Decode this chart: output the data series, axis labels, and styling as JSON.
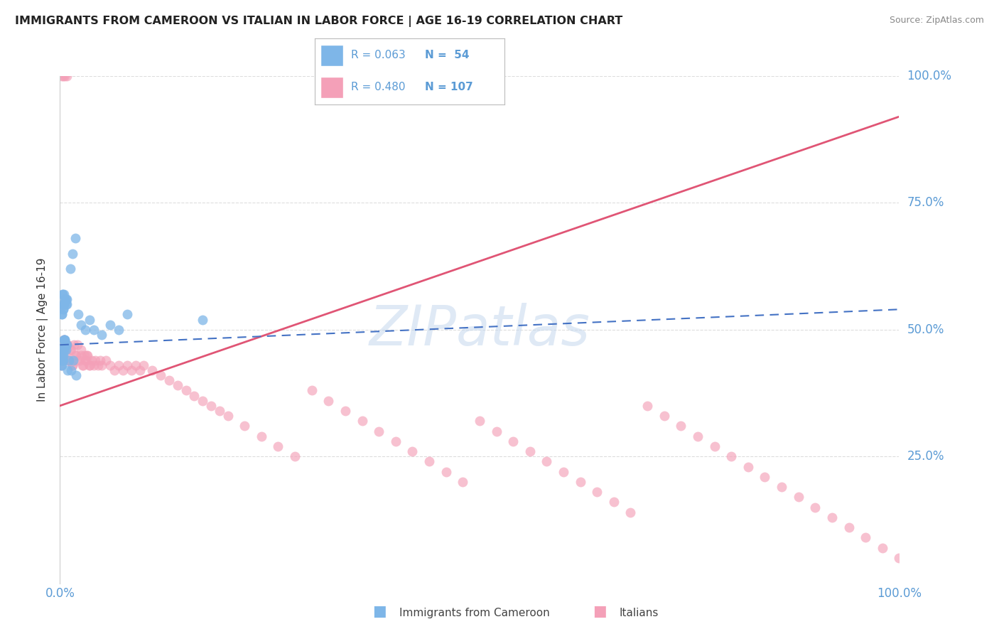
{
  "title": "IMMIGRANTS FROM CAMEROON VS ITALIAN IN LABOR FORCE | AGE 16-19 CORRELATION CHART",
  "source": "Source: ZipAtlas.com",
  "ylabel": "In Labor Force | Age 16-19",
  "xlim": [
    0.0,
    1.0
  ],
  "ylim": [
    0.0,
    1.0
  ],
  "xticklabels": [
    "0.0%",
    "100.0%"
  ],
  "yticklabels": [
    "25.0%",
    "50.0%",
    "75.0%",
    "100.0%"
  ],
  "ytick_positions": [
    0.25,
    0.5,
    0.75,
    1.0
  ],
  "watermark": "ZIPatlas",
  "legend_r_cam": "0.063",
  "legend_n_cam": "54",
  "legend_r_ital": "0.480",
  "legend_n_ital": "107",
  "color_cameroon": "#7EB6E8",
  "color_italian": "#F4A0B8",
  "color_trend_cameroon": "#4472C4",
  "color_trend_italian": "#E05575",
  "color_tick_labels": "#5B9BD5",
  "color_title": "#222222",
  "background_color": "#FFFFFF",
  "grid_color": "#DDDDDD",
  "watermark_color": "#C5D8EE",
  "cam_x": [
    0.005,
    0.003,
    0.002,
    0.007,
    0.004,
    0.006,
    0.001,
    0.008,
    0.003,
    0.005,
    0.002,
    0.004,
    0.006,
    0.003,
    0.007,
    0.005,
    0.002,
    0.004,
    0.006,
    0.003,
    0.008,
    0.005,
    0.003,
    0.007,
    0.004,
    0.006,
    0.002,
    0.005,
    0.003,
    0.007,
    0.004,
    0.006,
    0.002,
    0.008,
    0.005,
    0.003,
    0.012,
    0.015,
    0.018,
    0.022,
    0.025,
    0.03,
    0.035,
    0.04,
    0.05,
    0.06,
    0.07,
    0.08,
    0.009,
    0.011,
    0.013,
    0.016,
    0.019,
    0.17
  ],
  "cam_y": [
    0.48,
    0.46,
    0.45,
    0.47,
    0.44,
    0.46,
    0.43,
    0.47,
    0.45,
    0.47,
    0.44,
    0.46,
    0.48,
    0.44,
    0.46,
    0.48,
    0.43,
    0.45,
    0.48,
    0.44,
    0.56,
    0.55,
    0.57,
    0.56,
    0.54,
    0.56,
    0.53,
    0.55,
    0.57,
    0.55,
    0.54,
    0.56,
    0.53,
    0.55,
    0.57,
    0.55,
    0.62,
    0.65,
    0.68,
    0.53,
    0.51,
    0.5,
    0.52,
    0.5,
    0.49,
    0.51,
    0.5,
    0.53,
    0.42,
    0.44,
    0.42,
    0.44,
    0.41,
    0.52
  ],
  "ital_x": [
    0.003,
    0.005,
    0.002,
    0.007,
    0.004,
    0.006,
    0.001,
    0.008,
    0.003,
    0.005,
    0.01,
    0.012,
    0.015,
    0.018,
    0.02,
    0.025,
    0.028,
    0.03,
    0.032,
    0.035,
    0.038,
    0.04,
    0.042,
    0.045,
    0.048,
    0.05,
    0.055,
    0.06,
    0.065,
    0.07,
    0.075,
    0.08,
    0.085,
    0.09,
    0.095,
    0.1,
    0.11,
    0.12,
    0.13,
    0.14,
    0.15,
    0.16,
    0.17,
    0.18,
    0.19,
    0.2,
    0.22,
    0.24,
    0.26,
    0.28,
    0.3,
    0.32,
    0.34,
    0.36,
    0.38,
    0.4,
    0.42,
    0.44,
    0.46,
    0.48,
    0.5,
    0.52,
    0.54,
    0.56,
    0.58,
    0.6,
    0.62,
    0.64,
    0.66,
    0.68,
    0.7,
    0.72,
    0.74,
    0.76,
    0.78,
    0.8,
    0.82,
    0.84,
    0.86,
    0.88,
    0.9,
    0.92,
    0.94,
    0.96,
    0.98,
    1.0,
    0.002,
    0.004,
    0.006,
    0.008,
    0.003,
    0.005,
    0.007,
    0.009,
    0.011,
    0.013,
    0.015,
    0.017,
    0.019,
    0.021,
    0.023,
    0.025,
    0.027,
    0.029,
    0.031,
    0.033,
    0.035
  ],
  "ital_y": [
    0.46,
    0.48,
    0.45,
    0.47,
    0.44,
    0.46,
    0.43,
    0.47,
    0.45,
    0.47,
    0.44,
    0.46,
    0.43,
    0.45,
    0.44,
    0.45,
    0.43,
    0.44,
    0.45,
    0.43,
    0.44,
    0.43,
    0.44,
    0.43,
    0.44,
    0.43,
    0.44,
    0.43,
    0.42,
    0.43,
    0.42,
    0.43,
    0.42,
    0.43,
    0.42,
    0.43,
    0.42,
    0.41,
    0.4,
    0.39,
    0.38,
    0.37,
    0.36,
    0.35,
    0.34,
    0.33,
    0.31,
    0.29,
    0.27,
    0.25,
    0.38,
    0.36,
    0.34,
    0.32,
    0.3,
    0.28,
    0.26,
    0.24,
    0.22,
    0.2,
    0.32,
    0.3,
    0.28,
    0.26,
    0.24,
    0.22,
    0.2,
    0.18,
    0.16,
    0.14,
    0.35,
    0.33,
    0.31,
    0.29,
    0.27,
    0.25,
    0.23,
    0.21,
    0.19,
    0.17,
    0.15,
    0.13,
    0.11,
    0.09,
    0.07,
    0.05,
    1.0,
    1.0,
    1.0,
    1.0,
    0.46,
    0.48,
    0.45,
    0.47,
    0.44,
    0.46,
    0.43,
    0.47,
    0.45,
    0.47,
    0.44,
    0.46,
    0.43,
    0.45,
    0.44,
    0.45,
    0.43
  ],
  "cam_trend_x0": 0.0,
  "cam_trend_x1": 1.0,
  "cam_trend_y0": 0.47,
  "cam_trend_y1": 0.54,
  "ital_trend_x0": 0.0,
  "ital_trend_x1": 1.0,
  "ital_trend_y0": 0.35,
  "ital_trend_y1": 0.92
}
